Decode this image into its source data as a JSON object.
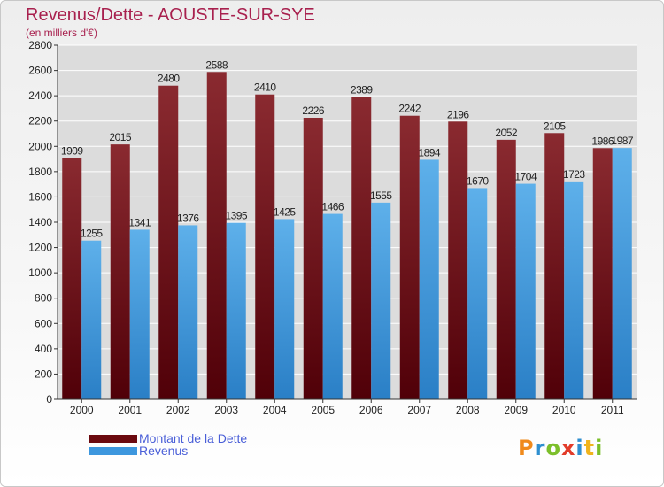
{
  "header": {
    "title": "Revenus/Dette - AOUSTE-SUR-SYE",
    "subtitle": "(en milliers d'€)"
  },
  "legend": {
    "items": [
      {
        "label": "Montant de la Dette",
        "color": "#6b0a0f"
      },
      {
        "label": "Revenus",
        "color": "#3d97de"
      }
    ]
  },
  "logo": {
    "text": "Proxiti",
    "letters": [
      "P",
      "r",
      "o",
      "x",
      "i",
      "t",
      "i"
    ],
    "colors": [
      "#f08a1c",
      "#2f8fd0",
      "#7cbf2a",
      "#e23c2a",
      "#2f8fd0",
      "#f0b41c",
      "#7cbf2a"
    ]
  },
  "colors": {
    "dette_top": "#8a2a30",
    "dette_bottom": "#500008",
    "revenus_top": "#5eb0ea",
    "revenus_bottom": "#2a7fc6",
    "grid": "#ffffff",
    "plot_background": "#dcdcdc",
    "axis": "#333333"
  },
  "chart_data": {
    "type": "bar",
    "title": "Revenus/Dette - AOUSTE-SUR-SYE",
    "subtitle": "(en milliers d'€)",
    "categories": [
      "2000",
      "2001",
      "2002",
      "2003",
      "2004",
      "2005",
      "2006",
      "2007",
      "2008",
      "2009",
      "2010",
      "2011"
    ],
    "series": [
      {
        "name": "Montant de la Dette",
        "values": [
          1909,
          2015,
          2480,
          2588,
          2410,
          2226,
          2389,
          2242,
          2196,
          2052,
          2105,
          1986
        ]
      },
      {
        "name": "Revenus",
        "values": [
          1255,
          1341,
          1376,
          1395,
          1425,
          1466,
          1555,
          1894,
          1670,
          1704,
          1723,
          1987
        ]
      }
    ],
    "ylim": [
      0,
      2800
    ],
    "yticks": [
      0,
      200,
      400,
      600,
      800,
      1000,
      1200,
      1400,
      1600,
      1800,
      2000,
      2200,
      2400,
      2600,
      2800
    ],
    "grid": true,
    "legend_position": "bottom-left",
    "data_labels": true
  }
}
